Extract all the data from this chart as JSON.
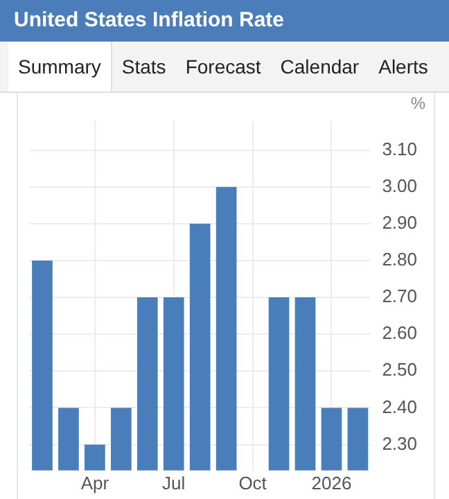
{
  "chart_data": {
    "type": "bar",
    "title": "United States Inflation Rate",
    "annotations": [
      "Summary",
      "Stats",
      "Forecast",
      "Calendar",
      "Alerts"
    ],
    "ylabel": "%",
    "categories": [
      null,
      null,
      "Apr",
      null,
      null,
      "Jul",
      null,
      null,
      "Oct",
      null,
      null,
      "2026",
      null
    ],
    "values": [
      2.8,
      2.4,
      2.3,
      2.4,
      2.7,
      2.7,
      2.9,
      3.0,
      null,
      2.7,
      2.7,
      2.4,
      2.4
    ],
    "color": "#4a7ebb",
    "ylim": [
      2.23,
      3.18
    ],
    "yticks": [
      {
        "value": 2.3,
        "label": "2.30"
      },
      {
        "value": 2.4,
        "label": "2.40"
      },
      {
        "value": 2.5,
        "label": "2.50"
      },
      {
        "value": 2.6,
        "label": "2.60"
      },
      {
        "value": 2.7,
        "label": "2.70"
      },
      {
        "value": 2.8,
        "label": "2.80"
      },
      {
        "value": 2.9,
        "label": "2.90"
      },
      {
        "value": 3.0,
        "label": "3.00"
      },
      {
        "value": 3.1,
        "label": "3.10"
      }
    ],
    "grid": true,
    "legend": false
  }
}
